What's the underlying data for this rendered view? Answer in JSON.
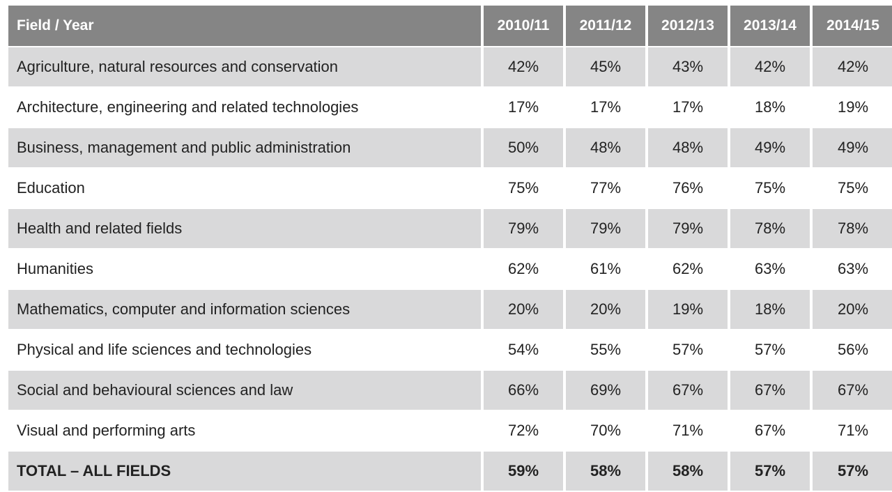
{
  "table": {
    "header": [
      "Field / Year",
      "2010/11",
      "2011/12",
      "2012/13",
      "2013/14",
      "2014/15"
    ],
    "rows": [
      [
        "Agriculture, natural resources and conservation",
        "42%",
        "45%",
        "43%",
        "42%",
        "42%"
      ],
      [
        "Architecture, engineering and related technologies",
        "17%",
        "17%",
        "17%",
        "18%",
        "19%"
      ],
      [
        "Business, management and public administration",
        "50%",
        "48%",
        "48%",
        "49%",
        "49%"
      ],
      [
        "Education",
        "75%",
        "77%",
        "76%",
        "75%",
        "75%"
      ],
      [
        "Health and related fields",
        "79%",
        "79%",
        "79%",
        "78%",
        "78%"
      ],
      [
        "Humanities",
        "62%",
        "61%",
        "62%",
        "63%",
        "63%"
      ],
      [
        "Mathematics, computer and information sciences",
        "20%",
        "20%",
        "19%",
        "18%",
        "20%"
      ],
      [
        "Physical and life sciences and technologies",
        "54%",
        "55%",
        "57%",
        "57%",
        "56%"
      ],
      [
        "Social and behavioural sciences and law",
        "66%",
        "69%",
        "67%",
        "67%",
        "67%"
      ],
      [
        "Visual and performing arts",
        "72%",
        "70%",
        "71%",
        "67%",
        "71%"
      ],
      [
        "TOTAL – ALL FIELDS",
        "59%",
        "58%",
        "58%",
        "57%",
        "57%"
      ]
    ]
  }
}
